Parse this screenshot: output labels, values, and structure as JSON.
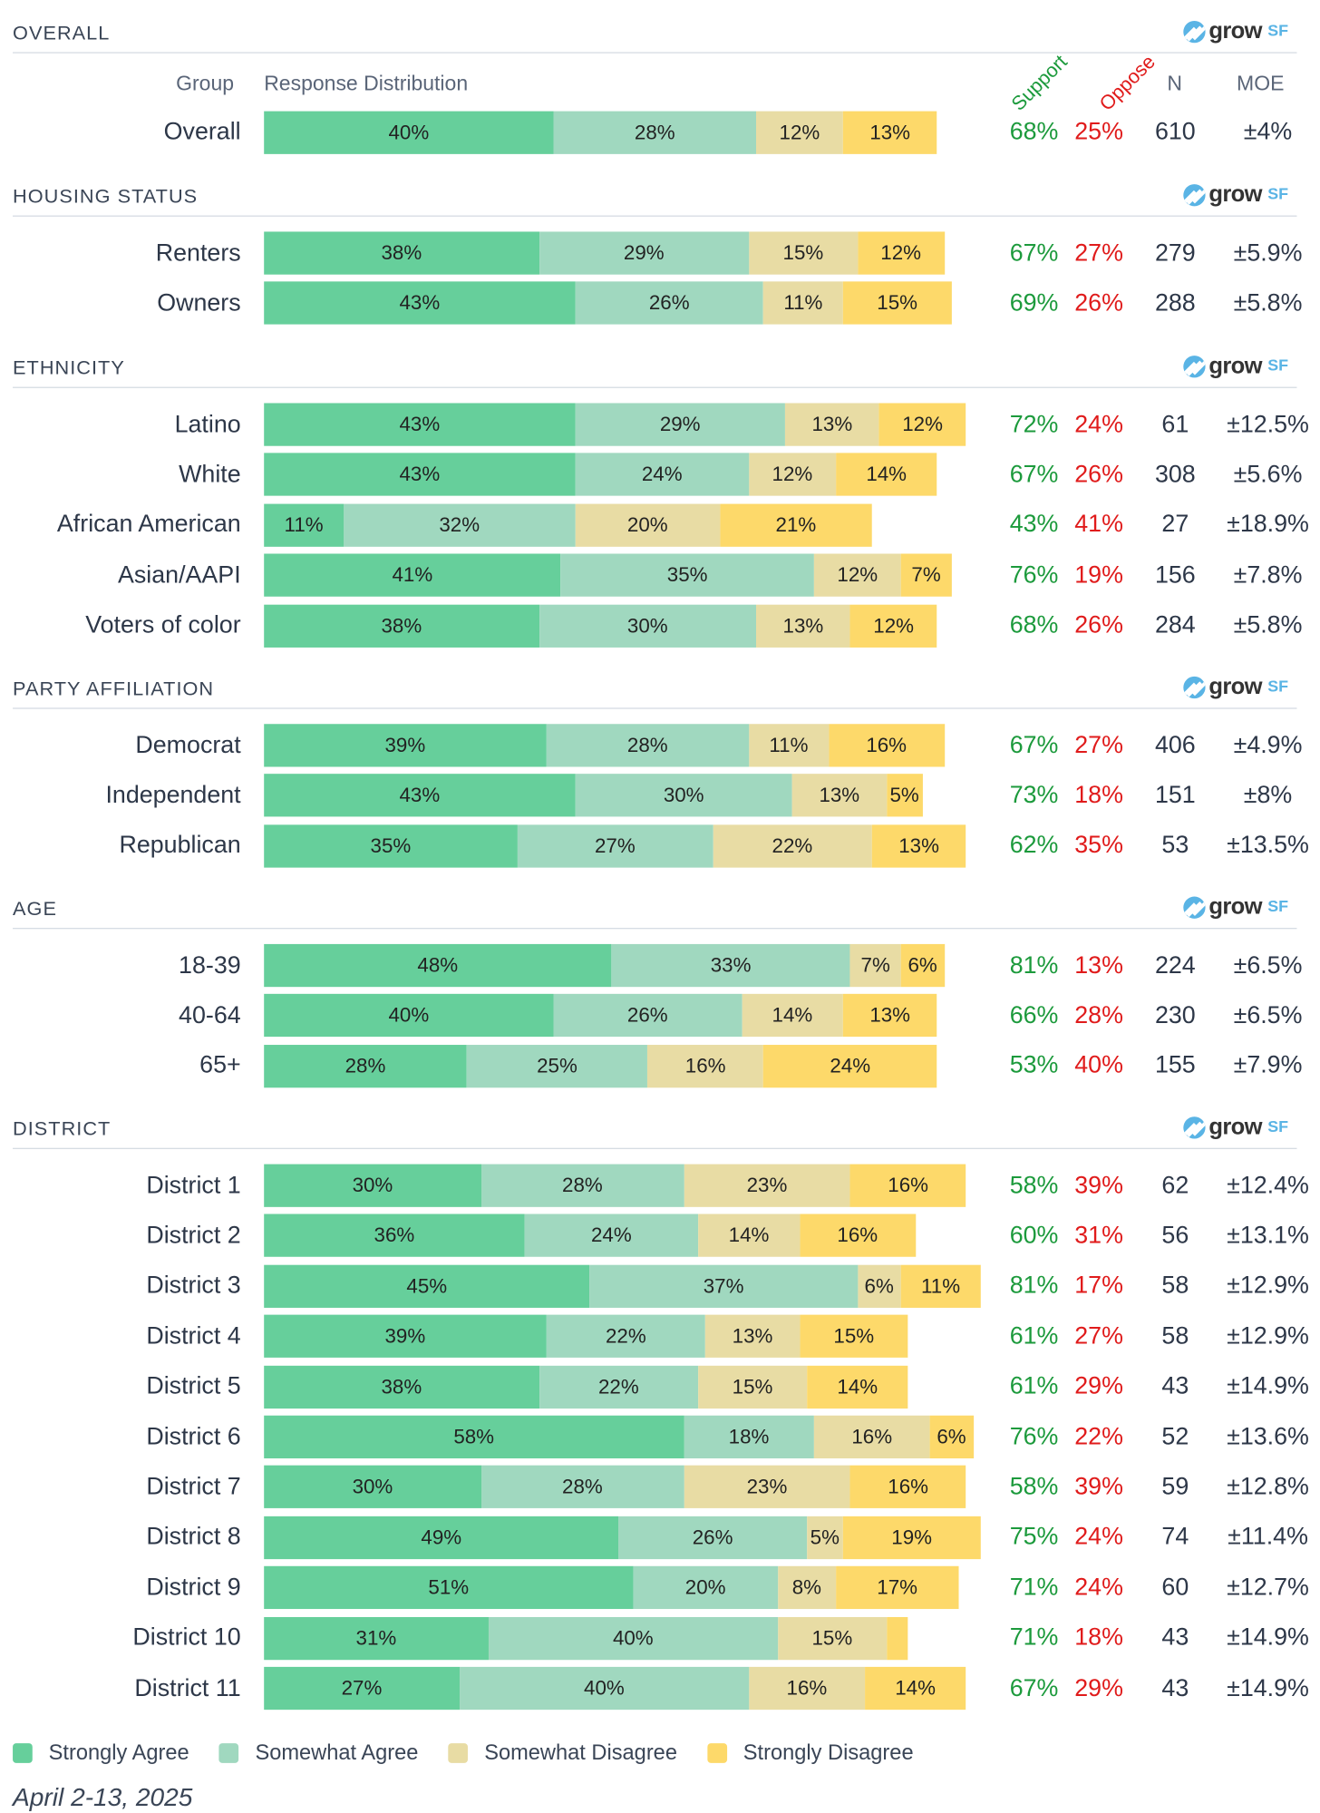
{
  "logo": {
    "text": "grow",
    "suffix": "SF"
  },
  "columns": {
    "group": "Group",
    "distribution": "Response Distribution",
    "support": "Support",
    "oppose": "Oppose",
    "n": "N",
    "moe": "MOE"
  },
  "colors": {
    "strongly_agree": "#66cf9b",
    "somewhat_agree": "#a0d8bf",
    "somewhat_disagree": "#e8dca4",
    "strongly_disagree": "#fdd96a",
    "support": "#1c9a3c",
    "oppose": "#e01b1b"
  },
  "chart_data": {
    "type": "bar",
    "orientation": "horizontal-stacked",
    "series_names": [
      "Strongly Agree",
      "Somewhat Agree",
      "Somewhat Disagree",
      "Strongly Disagree"
    ],
    "unit": "%",
    "sections": [
      {
        "title": "OVERALL",
        "rows": [
          {
            "group": "Overall",
            "values": [
              40,
              28,
              12,
              13
            ],
            "support": "68%",
            "oppose": "25%",
            "n": "610",
            "moe": "±4%"
          }
        ]
      },
      {
        "title": "HOUSING STATUS",
        "rows": [
          {
            "group": "Renters",
            "values": [
              38,
              29,
              15,
              12
            ],
            "support": "67%",
            "oppose": "27%",
            "n": "279",
            "moe": "±5.9%"
          },
          {
            "group": "Owners",
            "values": [
              43,
              26,
              11,
              15
            ],
            "support": "69%",
            "oppose": "26%",
            "n": "288",
            "moe": "±5.8%"
          }
        ]
      },
      {
        "title": "ETHNICITY",
        "rows": [
          {
            "group": "Latino",
            "values": [
              43,
              29,
              13,
              12
            ],
            "support": "72%",
            "oppose": "24%",
            "n": "61",
            "moe": "±12.5%"
          },
          {
            "group": "White",
            "values": [
              43,
              24,
              12,
              14
            ],
            "support": "67%",
            "oppose": "26%",
            "n": "308",
            "moe": "±5.6%"
          },
          {
            "group": "African American",
            "values": [
              11,
              32,
              20,
              21
            ],
            "support": "43%",
            "oppose": "41%",
            "n": "27",
            "moe": "±18.9%"
          },
          {
            "group": "Asian/AAPI",
            "values": [
              41,
              35,
              12,
              7
            ],
            "support": "76%",
            "oppose": "19%",
            "n": "156",
            "moe": "±7.8%"
          },
          {
            "group": "Voters of color",
            "values": [
              38,
              30,
              13,
              12
            ],
            "support": "68%",
            "oppose": "26%",
            "n": "284",
            "moe": "±5.8%"
          }
        ]
      },
      {
        "title": "PARTY AFFILIATION",
        "rows": [
          {
            "group": "Democrat",
            "values": [
              39,
              28,
              11,
              16
            ],
            "support": "67%",
            "oppose": "27%",
            "n": "406",
            "moe": "±4.9%"
          },
          {
            "group": "Independent",
            "values": [
              43,
              30,
              13,
              5
            ],
            "support": "73%",
            "oppose": "18%",
            "n": "151",
            "moe": "±8%"
          },
          {
            "group": "Republican",
            "values": [
              35,
              27,
              22,
              13
            ],
            "support": "62%",
            "oppose": "35%",
            "n": "53",
            "moe": "±13.5%"
          }
        ]
      },
      {
        "title": "AGE",
        "rows": [
          {
            "group": "18-39",
            "values": [
              48,
              33,
              7,
              6
            ],
            "support": "81%",
            "oppose": "13%",
            "n": "224",
            "moe": "±6.5%"
          },
          {
            "group": "40-64",
            "values": [
              40,
              26,
              14,
              13
            ],
            "support": "66%",
            "oppose": "28%",
            "n": "230",
            "moe": "±6.5%"
          },
          {
            "group": "65+",
            "values": [
              28,
              25,
              16,
              24
            ],
            "support": "53%",
            "oppose": "40%",
            "n": "155",
            "moe": "±7.9%"
          }
        ]
      },
      {
        "title": "DISTRICT",
        "rows": [
          {
            "group": "District 1",
            "values": [
              30,
              28,
              23,
              16
            ],
            "support": "58%",
            "oppose": "39%",
            "n": "62",
            "moe": "±12.4%"
          },
          {
            "group": "District 2",
            "values": [
              36,
              24,
              14,
              16
            ],
            "support": "60%",
            "oppose": "31%",
            "n": "56",
            "moe": "±13.1%"
          },
          {
            "group": "District 3",
            "values": [
              45,
              37,
              6,
              11
            ],
            "support": "81%",
            "oppose": "17%",
            "n": "58",
            "moe": "±12.9%"
          },
          {
            "group": "District 4",
            "values": [
              39,
              22,
              13,
              15
            ],
            "support": "61%",
            "oppose": "27%",
            "n": "58",
            "moe": "±12.9%"
          },
          {
            "group": "District 5",
            "values": [
              38,
              22,
              15,
              14
            ],
            "support": "61%",
            "oppose": "29%",
            "n": "43",
            "moe": "±14.9%"
          },
          {
            "group": "District 6",
            "values": [
              58,
              18,
              16,
              6
            ],
            "support": "76%",
            "oppose": "22%",
            "n": "52",
            "moe": "±13.6%"
          },
          {
            "group": "District 7",
            "values": [
              30,
              28,
              23,
              16
            ],
            "support": "58%",
            "oppose": "39%",
            "n": "59",
            "moe": "±12.8%"
          },
          {
            "group": "District 8",
            "values": [
              49,
              26,
              5,
              19
            ],
            "support": "75%",
            "oppose": "24%",
            "n": "74",
            "moe": "±11.4%"
          },
          {
            "group": "District 9",
            "values": [
              51,
              20,
              8,
              17
            ],
            "support": "71%",
            "oppose": "24%",
            "n": "60",
            "moe": "±12.7%"
          },
          {
            "group": "District 10",
            "values": [
              31,
              40,
              15,
              3
            ],
            "support": "71%",
            "oppose": "18%",
            "n": "43",
            "moe": "±14.9%"
          },
          {
            "group": "District 11",
            "values": [
              27,
              40,
              16,
              14
            ],
            "support": "67%",
            "oppose": "29%",
            "n": "43",
            "moe": "±14.9%"
          }
        ]
      }
    ]
  },
  "legend": [
    "Strongly Agree",
    "Somewhat Agree",
    "Somewhat Disagree",
    "Strongly Disagree"
  ],
  "date": "April 2-13, 2025"
}
